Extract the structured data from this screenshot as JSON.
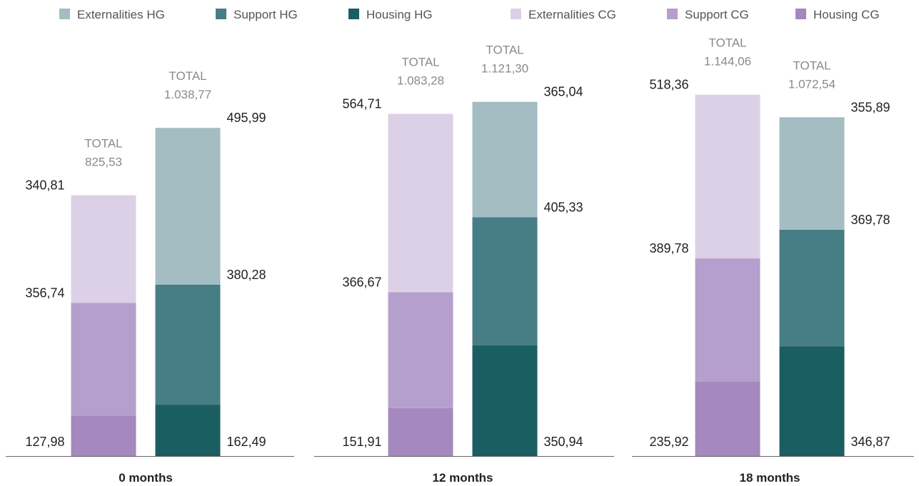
{
  "chart_data": {
    "type": "bar",
    "stacked": true,
    "categories": [
      "0 months",
      "12 months",
      "18 months"
    ],
    "ylim": [
      0,
      1200
    ],
    "legend": {
      "position": "top",
      "items": [
        {
          "key": "ext_hg",
          "label": "Externalities HG",
          "color": "#a3bdc2"
        },
        {
          "key": "sup_hg",
          "label": "Support HG",
          "color": "#477d84"
        },
        {
          "key": "hou_hg",
          "label": "Housing HG",
          "color": "#1b5e62"
        },
        {
          "key": "ext_cg",
          "label": "Externalities CG",
          "color": "#dcd0e6"
        },
        {
          "key": "sup_cg",
          "label": "Support CG",
          "color": "#b59fcc"
        },
        {
          "key": "hou_cg",
          "label": "Housing CG",
          "color": "#a488be"
        }
      ]
    },
    "total_prefix": "TOTAL",
    "bars": [
      {
        "category": "0 months",
        "group": "CG",
        "total": 825.53,
        "total_label": "825,53",
        "segments": [
          {
            "series": "Housing CG",
            "value": 127.98,
            "label": "127,98",
            "color": "#a488be"
          },
          {
            "series": "Support CG",
            "value": 356.74,
            "label": "356,74",
            "color": "#b59fcc"
          },
          {
            "series": "Externalities CG",
            "value": 340.81,
            "label": "340,81",
            "color": "#dcd0e6"
          }
        ]
      },
      {
        "category": "0 months",
        "group": "HG",
        "total": 1038.77,
        "total_label": "1.038,77",
        "segments": [
          {
            "series": "Housing HG",
            "value": 162.49,
            "label": "162,49",
            "color": "#1b5e62"
          },
          {
            "series": "Support HG",
            "value": 380.28,
            "label": "380,28",
            "color": "#477d84"
          },
          {
            "series": "Externalities HG",
            "value": 495.99,
            "label": "495,99",
            "color": "#a3bdc2"
          }
        ]
      },
      {
        "category": "12 months",
        "group": "CG",
        "total": 1083.28,
        "total_label": "1.083,28",
        "segments": [
          {
            "series": "Housing CG",
            "value": 151.91,
            "label": "151,91",
            "color": "#a488be"
          },
          {
            "series": "Support CG",
            "value": 366.67,
            "label": "366,67",
            "color": "#b59fcc"
          },
          {
            "series": "Externalities CG",
            "value": 564.71,
            "label": "564,71",
            "color": "#dcd0e6"
          }
        ]
      },
      {
        "category": "12 months",
        "group": "HG",
        "total": 1121.3,
        "total_label": "1.121,30",
        "segments": [
          {
            "series": "Housing HG",
            "value": 350.94,
            "label": "350,94",
            "color": "#1b5e62"
          },
          {
            "series": "Support HG",
            "value": 405.33,
            "label": "405,33",
            "color": "#477d84"
          },
          {
            "series": "Externalities HG",
            "value": 365.04,
            "label": "365,04",
            "color": "#a3bdc2"
          }
        ]
      },
      {
        "category": "18 months",
        "group": "CG",
        "total": 1144.06,
        "total_label": "1.144,06",
        "segments": [
          {
            "series": "Housing CG",
            "value": 235.92,
            "label": "235,92",
            "color": "#a488be"
          },
          {
            "series": "Support CG",
            "value": 389.78,
            "label": "389,78",
            "color": "#b59fcc"
          },
          {
            "series": "Externalities CG",
            "value": 518.36,
            "label": "518,36",
            "color": "#dcd0e6"
          }
        ]
      },
      {
        "category": "18 months",
        "group": "HG",
        "total": 1072.54,
        "total_label": "1.072,54",
        "segments": [
          {
            "series": "Housing HG",
            "value": 346.87,
            "label": "346,87",
            "color": "#1b5e62"
          },
          {
            "series": "Support HG",
            "value": 369.78,
            "label": "369,78",
            "color": "#477d84"
          },
          {
            "series": "Externalities HG",
            "value": 355.89,
            "label": "355,89",
            "color": "#a3bdc2"
          }
        ]
      }
    ]
  }
}
